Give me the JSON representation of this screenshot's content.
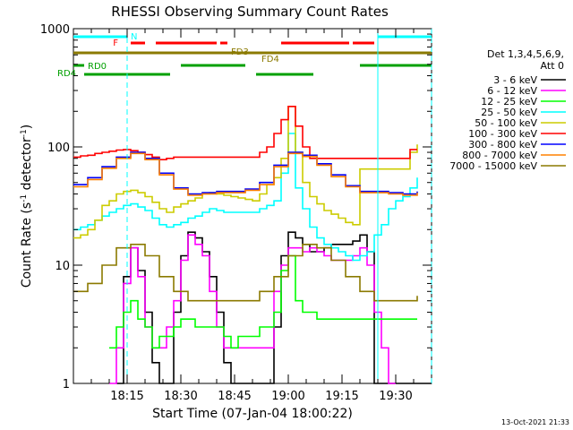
{
  "chart_data": {
    "type": "line",
    "title": "RHESSI Observing Summary Count Rates",
    "xlabel": "Start Time (07-Jan-04 18:00:22)",
    "ylabel_main": "Count Rate (s",
    "ylabel_sup1": "-1",
    "ylabel_mid": " detector",
    "ylabel_sup2": "-1",
    "ylabel_end": ")",
    "y_scale": "log",
    "ylim": [
      1,
      1000
    ],
    "xlim_minutes": [
      0,
      100
    ],
    "x_ticks": [
      {
        "label": "18:15",
        "value": 15
      },
      {
        "label": "18:30",
        "value": 30
      },
      {
        "label": "18:45",
        "value": 45
      },
      {
        "label": "19:00",
        "value": 60
      },
      {
        "label": "19:15",
        "value": 75
      },
      {
        "label": "19:30",
        "value": 90
      }
    ],
    "y_ticks": [
      {
        "label": "1",
        "value": 1
      },
      {
        "label": "10",
        "value": 10
      },
      {
        "label": "100",
        "value": 100
      },
      {
        "label": "1000",
        "value": 1000
      }
    ],
    "legend_header": [
      "Det 1,3,4,5,6,9,",
      "Att 0"
    ],
    "legend_placement": "right",
    "timestamp": "13-Oct-2021 21:33",
    "flag_labels": [
      {
        "label": "N",
        "color": "#00ffff"
      },
      {
        "label": "F",
        "color": "#ff0000"
      },
      {
        "label": "FD3",
        "color": "#8b7a00"
      },
      {
        "label": "FD4",
        "color": "#8b7a00"
      },
      {
        "label": "RD0",
        "color": "#00a000"
      },
      {
        "label": "RD4",
        "color": "#00a000"
      }
    ],
    "flag_bars": [
      {
        "name": "N",
        "color": "#00ffff",
        "segments": [
          [
            0,
            15
          ],
          [
            85,
            100
          ]
        ]
      },
      {
        "name": "F",
        "color": "#ff0000",
        "segments": [
          [
            16,
            20
          ],
          [
            23,
            40
          ],
          [
            41,
            43
          ],
          [
            58,
            77
          ],
          [
            78,
            84
          ]
        ]
      },
      {
        "name": "FD",
        "color": "#8b7a00",
        "segments": [
          [
            0,
            100
          ]
        ]
      },
      {
        "name": "RD0",
        "color": "#00a000",
        "segments": [
          [
            0,
            3
          ],
          [
            30,
            48
          ],
          [
            80,
            100
          ]
        ]
      },
      {
        "name": "RD4",
        "color": "#00a000",
        "segments": [
          [
            3,
            27
          ],
          [
            51,
            67
          ]
        ]
      }
    ],
    "series": [
      {
        "name": "3 - 6 keV",
        "color": "#000000",
        "x": [
          12,
          14,
          16,
          18,
          20,
          22,
          24,
          26,
          28,
          30,
          32,
          34,
          36,
          38,
          40,
          42,
          44,
          46,
          48,
          50,
          52,
          54,
          56,
          58,
          60,
          62,
          64,
          66,
          68,
          70,
          72,
          74,
          76,
          78,
          80,
          82,
          84,
          86,
          88,
          90,
          92,
          94,
          96,
          98,
          100
        ],
        "y": [
          1,
          8,
          14,
          9,
          4,
          1.5,
          1,
          1,
          4,
          12,
          19,
          17,
          13,
          8,
          4,
          1.5,
          1,
          1,
          1,
          1,
          1,
          1,
          3,
          12,
          19,
          17,
          15,
          13,
          13,
          14,
          15,
          15,
          15,
          16,
          18,
          13,
          1,
          1,
          1,
          1,
          1,
          1,
          1,
          1,
          1
        ]
      },
      {
        "name": "6 - 12 keV",
        "color": "#ff00ff",
        "x": [
          10,
          12,
          14,
          16,
          18,
          20,
          22,
          24,
          26,
          28,
          30,
          32,
          34,
          36,
          38,
          40,
          42,
          44,
          46,
          48,
          50,
          52,
          54,
          56,
          58,
          60,
          62,
          64,
          66,
          68,
          70,
          72,
          74,
          76,
          78,
          80,
          82,
          84,
          86,
          88,
          90
        ],
        "y": [
          1,
          2,
          7,
          14,
          8,
          3,
          2,
          2,
          3,
          5,
          11,
          18,
          15,
          12,
          6,
          3,
          2,
          2,
          2,
          2,
          2,
          2,
          2,
          6,
          10,
          14,
          14,
          13,
          14,
          13,
          12,
          11,
          11,
          11,
          12,
          14,
          10,
          4,
          2,
          1,
          1
        ]
      },
      {
        "name": "12 - 25 keV",
        "color": "#00ff00",
        "x": [
          10,
          12,
          14,
          16,
          18,
          20,
          22,
          24,
          26,
          28,
          30,
          32,
          34,
          36,
          38,
          40,
          42,
          44,
          46,
          48,
          50,
          52,
          54,
          56,
          58,
          60,
          62,
          64,
          66,
          68,
          70,
          72,
          74,
          76,
          78,
          80,
          82,
          84,
          86,
          88,
          90,
          92,
          94,
          96
        ],
        "y": [
          2,
          3,
          4,
          5,
          3.5,
          3,
          2,
          2.5,
          2.5,
          3,
          3.5,
          3.5,
          3,
          3,
          3,
          3,
          2.5,
          2,
          2.5,
          2.5,
          2.5,
          3,
          3,
          4,
          9,
          12,
          5,
          4,
          4,
          3.5,
          3.5,
          3.5,
          3.5,
          3.5,
          3.5,
          3.5,
          3.5,
          3.5,
          3.5,
          3.5,
          3.5,
          3.5,
          3.5,
          3.5
        ]
      },
      {
        "name": "25 - 50 keV",
        "color": "#00ffff",
        "x": [
          0,
          2,
          4,
          6,
          8,
          10,
          12,
          14,
          16,
          18,
          20,
          22,
          24,
          26,
          28,
          30,
          32,
          34,
          36,
          38,
          40,
          42,
          44,
          46,
          48,
          50,
          52,
          54,
          56,
          58,
          60,
          62,
          64,
          66,
          68,
          70,
          72,
          74,
          76,
          78,
          80,
          82,
          84,
          86,
          88,
          90,
          92,
          94,
          96
        ],
        "y": [
          20,
          21,
          22,
          24,
          26,
          28,
          30,
          32,
          33,
          31,
          29,
          25,
          22,
          21,
          22,
          23,
          25,
          26,
          28,
          30,
          29,
          28,
          28,
          28,
          28,
          28,
          30,
          32,
          35,
          60,
          130,
          45,
          30,
          21,
          17,
          15,
          14,
          13,
          12,
          11,
          12,
          13,
          18,
          22,
          30,
          35,
          38,
          45,
          55
        ]
      },
      {
        "name": "50 - 100 keV",
        "color": "#cccc00",
        "x": [
          0,
          2,
          4,
          6,
          8,
          10,
          12,
          14,
          16,
          18,
          20,
          22,
          24,
          26,
          28,
          30,
          32,
          34,
          36,
          38,
          40,
          42,
          44,
          46,
          48,
          50,
          52,
          54,
          56,
          58,
          60,
          62,
          64,
          66,
          68,
          70,
          72,
          74,
          76,
          78,
          80,
          82,
          84,
          86,
          88,
          90,
          92,
          94,
          96
        ],
        "y": [
          17,
          18,
          20,
          24,
          32,
          35,
          40,
          42,
          43,
          41,
          38,
          34,
          30,
          28,
          31,
          33,
          35,
          37,
          40,
          41,
          40,
          39,
          38,
          37,
          36,
          35,
          40,
          48,
          55,
          80,
          220,
          90,
          50,
          38,
          33,
          29,
          27,
          25,
          23,
          22,
          65,
          65,
          65,
          65,
          65,
          65,
          65,
          90,
          105
        ]
      },
      {
        "name": "100 - 300 keV",
        "color": "#ff0000",
        "x": [
          0,
          2,
          4,
          6,
          8,
          10,
          12,
          14,
          16,
          18,
          20,
          22,
          24,
          26,
          28,
          30,
          32,
          34,
          36,
          38,
          40,
          42,
          44,
          46,
          48,
          50,
          52,
          54,
          56,
          58,
          60,
          62,
          64,
          66,
          68,
          70,
          72,
          74,
          76,
          78,
          80,
          82,
          84,
          86,
          88,
          90,
          92,
          94,
          96
        ],
        "y": [
          82,
          84,
          85,
          88,
          90,
          92,
          94,
          95,
          93,
          90,
          86,
          82,
          78,
          80,
          82,
          82,
          82,
          82,
          82,
          82,
          82,
          82,
          82,
          82,
          82,
          82,
          90,
          100,
          130,
          170,
          220,
          150,
          100,
          80,
          80,
          80,
          80,
          80,
          80,
          80,
          80,
          80,
          80,
          80,
          80,
          80,
          80,
          95,
          95
        ]
      },
      {
        "name": "300 - 800 keV",
        "color": "#0000ff",
        "x": [
          0,
          4,
          8,
          12,
          16,
          20,
          24,
          28,
          32,
          36,
          40,
          44,
          48,
          52,
          56,
          60,
          64,
          68,
          72,
          76,
          80,
          84,
          88,
          92,
          96
        ],
        "y": [
          48,
          55,
          68,
          82,
          90,
          80,
          60,
          45,
          40,
          41,
          42,
          42,
          44,
          50,
          70,
          90,
          85,
          72,
          58,
          47,
          42,
          42,
          41,
          40,
          42
        ]
      },
      {
        "name": "800 - 7000 keV",
        "color": "#ff8000",
        "x": [
          0,
          4,
          8,
          12,
          16,
          20,
          24,
          28,
          32,
          36,
          40,
          44,
          48,
          52,
          56,
          60,
          64,
          68,
          72,
          76,
          80,
          84,
          88,
          92,
          96
        ],
        "y": [
          46,
          53,
          66,
          80,
          88,
          78,
          58,
          44,
          39,
          40,
          41,
          41,
          43,
          48,
          68,
          88,
          83,
          70,
          56,
          46,
          41,
          41,
          40,
          39,
          41
        ]
      },
      {
        "name": "7000 - 15000 keV",
        "color": "#8b7a00",
        "x": [
          0,
          4,
          8,
          12,
          16,
          20,
          24,
          28,
          32,
          36,
          40,
          44,
          48,
          52,
          56,
          60,
          64,
          68,
          72,
          76,
          80,
          84,
          88,
          92,
          96
        ],
        "y": [
          6,
          7,
          10,
          14,
          15,
          12,
          8,
          6,
          5,
          5,
          5,
          5,
          5,
          6,
          8,
          12,
          15,
          14,
          11,
          8,
          6,
          5,
          5,
          5,
          5.5
        ]
      }
    ],
    "vertical_markers": [
      {
        "x": 15,
        "color": "#00ffff",
        "style": "dashed"
      },
      {
        "x": 85,
        "color": "#00ffff",
        "style": "solid"
      },
      {
        "x": 100,
        "color": "#00ffff",
        "style": "dashed"
      }
    ]
  }
}
